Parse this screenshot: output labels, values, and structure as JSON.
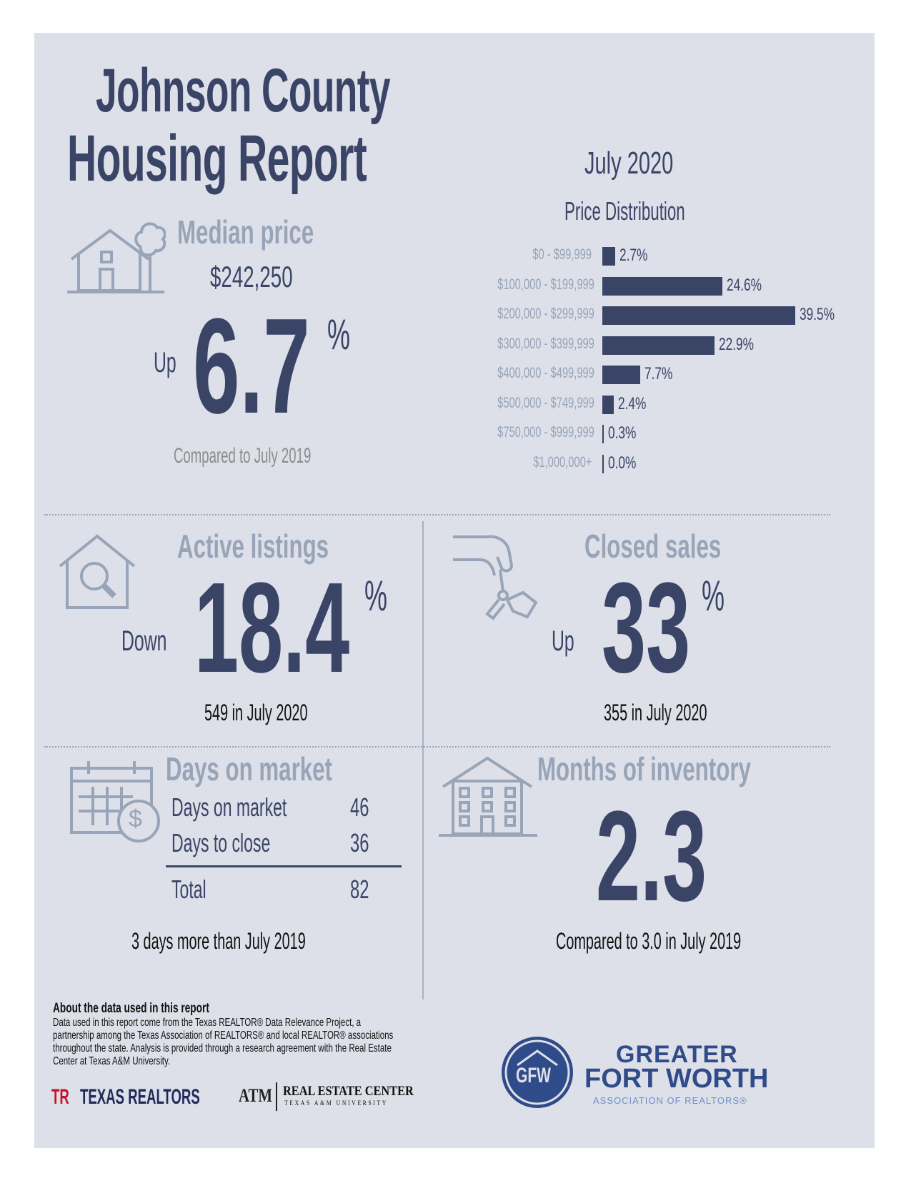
{
  "header": {
    "title_line1": "Johnson County",
    "title_line2": "Housing Report",
    "period": "July 2020"
  },
  "colors": {
    "accent": "#3a4466",
    "label_gray": "#98a4b8",
    "panel_bg": "#dde0e8"
  },
  "median_price": {
    "label": "Median price",
    "value": "$242,250",
    "direction": "Up",
    "change": "6.7",
    "unit": "%",
    "comparison": "Compared to July 2019",
    "icon": "house-tree-icon"
  },
  "price_distribution": {
    "title": "Price Distribution",
    "chart_data": {
      "type": "bar",
      "orientation": "horizontal",
      "categories": [
        "$0 - $99,999",
        "$100,000 - $199,999",
        "$200,000 - $299,999",
        "$300,000 - $399,999",
        "$400,000 - $499,999",
        "$500,000 - $749,999",
        "$750,000 - $999,999",
        "$1,000,000+"
      ],
      "values": [
        2.7,
        24.6,
        39.5,
        22.9,
        7.7,
        2.4,
        0.3,
        0.0
      ],
      "value_labels": [
        "2.7%",
        "24.6%",
        "39.5%",
        "22.9%",
        "7.7%",
        "2.4%",
        "0.3%",
        "0.0%"
      ],
      "xlim": [
        0,
        39.5
      ],
      "grid": false
    }
  },
  "active_listings": {
    "label": "Active listings",
    "direction": "Down",
    "change": "18.4",
    "unit": "%",
    "detail": "549 in July 2020",
    "icon": "house-magnifier-icon"
  },
  "closed_sales": {
    "label": "Closed sales",
    "direction": "Up",
    "change": "33",
    "unit": "%",
    "detail": "355 in July 2020",
    "icon": "hand-keys-icon"
  },
  "days_on_market": {
    "label": "Days on market",
    "rows": [
      {
        "label": "Days on market",
        "value": "46"
      },
      {
        "label": "Days to close",
        "value": "36"
      }
    ],
    "total": {
      "label": "Total",
      "value": "82"
    },
    "detail": "3 days more than July 2019",
    "icon": "calendar-dollar-icon"
  },
  "months_inventory": {
    "label": "Months of inventory",
    "value": "2.3",
    "detail": "Compared to 3.0 in July 2019",
    "icon": "apartment-building-icon"
  },
  "footer": {
    "about_title": "About the data used in this report",
    "about_text": "Data used in this report come from the Texas REALTOR® Data Relevance Project, a partnership among the Texas Association of REALTORS® and local REALTOR® associations throughout the state. Analysis is provided through a research agreement with the Real Estate Center at Texas A&M University.",
    "logo_texas_realtors": "TEXAS REALTORS",
    "logo_tr_mark": "TR",
    "logo_atm": "ATM",
    "logo_rec": "REAL ESTATE CENTER",
    "logo_rec_sub": "TEXAS A&M UNIVERSITY",
    "gfw_line1": "GREATER",
    "gfw_line2": "FORT WORTH",
    "gfw_line3": "ASSOCIATION OF REALTORS®",
    "gfw_mark": "GFW"
  }
}
